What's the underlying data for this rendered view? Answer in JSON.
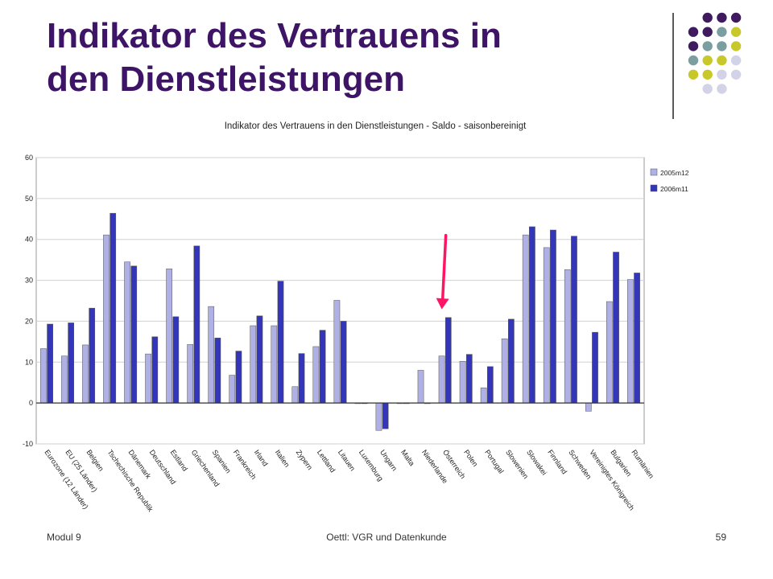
{
  "slide": {
    "title_lines": [
      "Indikator des Vertrauens in",
      "den Dienstleistungen"
    ],
    "footer_left": "Modul 9",
    "footer_center": "Oettl: VGR und Datenkunde",
    "footer_right": "59"
  },
  "colors": {
    "title": "#3d1466",
    "dot_purple": "#3f1a5e",
    "dot_teal": "#7b9ea0",
    "dot_yellow": "#c9c82a",
    "dot_lavender": "#d3d3e8",
    "series_light": "#aeb0e6",
    "series_dark": "#3336b8",
    "arrow": "#ff1466"
  },
  "chart_data": {
    "type": "bar",
    "title": "Indikator des Vertrauens in den Dienstleistungen - Saldo - saisonbereinigt",
    "xlabel": "",
    "ylabel": "",
    "ylim": [
      -10,
      60
    ],
    "yticks": [
      -10,
      0,
      10,
      20,
      30,
      40,
      50,
      60
    ],
    "grid": true,
    "legend_position": "top-right",
    "categories": [
      "Eurozone (12 Länder)",
      "EU (25 Länder)",
      "Belgien",
      "Tschechische Republik",
      "Dänemark",
      "Deutschland",
      "Estland",
      "Griechenland",
      "Spanien",
      "Frankreich",
      "Irland",
      "Italien",
      "Zypern",
      "Lettland",
      "Litauen",
      "Luxemburg",
      "Ungarn",
      "Malta",
      "Niederlande",
      "Österreich",
      "Polen",
      "Portugal",
      "Slowenien",
      "Slowakei",
      "Finnland",
      "Schweden",
      "Vereinigtes Königreich",
      "Bulgarien",
      "Rumänien"
    ],
    "series": [
      {
        "name": "2005m12",
        "values": [
          13.3,
          11.5,
          14.2,
          41.1,
          34.5,
          12.0,
          32.8,
          14.3,
          23.6,
          6.8,
          18.9,
          18.9,
          4.0,
          13.8,
          25.1,
          0,
          -6.7,
          0,
          8.0,
          11.5,
          10.2,
          3.7,
          15.7,
          41.1,
          38.0,
          32.6,
          -2.0,
          24.8,
          30.2
        ]
      },
      {
        "name": "2006m11",
        "values": [
          19.3,
          19.6,
          23.2,
          46.4,
          33.5,
          16.2,
          21.1,
          38.4,
          15.9,
          12.7,
          21.3,
          29.8,
          12.1,
          17.8,
          20.0,
          0,
          -6.3,
          0,
          0,
          20.9,
          11.9,
          8.9,
          20.5,
          43.1,
          42.3,
          40.8,
          17.3,
          36.9,
          31.8
        ]
      }
    ],
    "annotations": [
      {
        "type": "arrow",
        "target_category": "Österreich"
      }
    ]
  }
}
